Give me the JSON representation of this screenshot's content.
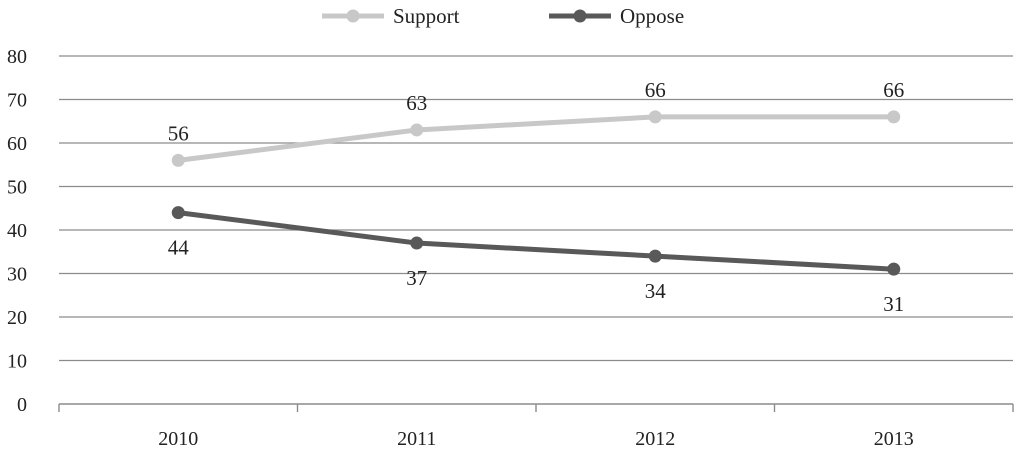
{
  "chart_data": {
    "type": "line",
    "categories": [
      "2010",
      "2011",
      "2012",
      "2013"
    ],
    "series": [
      {
        "name": "Support",
        "values": [
          56,
          63,
          66,
          66
        ],
        "color": "#c8c8c8",
        "label_position": "above"
      },
      {
        "name": "Oppose",
        "values": [
          44,
          37,
          34,
          31
        ],
        "color": "#595959",
        "label_position": "below"
      }
    ],
    "ylim": [
      0,
      80
    ],
    "yticks": [
      0,
      10,
      20,
      30,
      40,
      50,
      60,
      70,
      80
    ],
    "grid": true,
    "legend_position": "top-center"
  }
}
